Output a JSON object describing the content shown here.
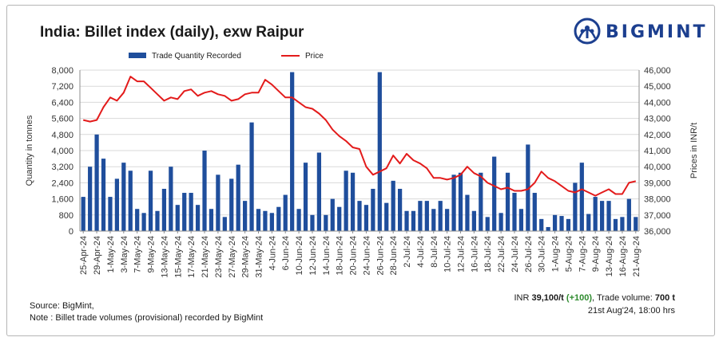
{
  "title": "India: Billet index (daily), exw Raipur",
  "brand": {
    "name": "BIGMINT",
    "color": "#1c3f8f"
  },
  "footer": {
    "source": "Source: BigMint,",
    "note": "Note : Billet trade volumes (provisional) recorded by BigMint"
  },
  "latest": {
    "price_prefix": "INR",
    "price_value": "39,100/t",
    "change": "(+100)",
    "volume_label": ", Trade volume:",
    "volume_value": "700 t",
    "timestamp": "21st Aug'24, 18:00 hrs"
  },
  "colors": {
    "bar": "#1f4e9c",
    "line": "#e31b1b",
    "grid": "#d9d9d9",
    "axis_text": "#333333"
  },
  "chart_data": {
    "type": "bar+line",
    "title": "India: Billet index (daily), exw Raipur",
    "legend": [
      "Trade Quantity Recorded",
      "Price"
    ],
    "legend_position": "top",
    "ylabel_left": "Quantity in tonnes",
    "ylabel_right": "Prices in INR/t",
    "ylim_left": [
      0,
      8000
    ],
    "yticks_left": [
      0,
      800,
      1600,
      2400,
      3200,
      4000,
      4800,
      5600,
      6400,
      7200,
      8000
    ],
    "ytick_labels_left": [
      "0",
      "800",
      "1,600",
      "2,400",
      "3,200",
      "4,000",
      "4,800",
      "5,600",
      "6,400",
      "7,200",
      "8,000"
    ],
    "ylim_right": [
      36000,
      46000
    ],
    "yticks_right": [
      36000,
      37000,
      38000,
      39000,
      40000,
      41000,
      42000,
      43000,
      44000,
      45000,
      46000
    ],
    "ytick_labels_right": [
      "36,000",
      "37,000",
      "38,000",
      "39,000",
      "40,000",
      "41,000",
      "42,000",
      "43,000",
      "44,000",
      "45,000",
      "46,000"
    ],
    "x_tick_labels": [
      "25-Apr-24",
      "29-Apr-24",
      "1-May-24",
      "3-May-24",
      "7-May-24",
      "9-May-24",
      "13-May-24",
      "15-May-24",
      "17-May-24",
      "21-May-24",
      "23-May-24",
      "27-May-24",
      "29-May-24",
      "31-May-24",
      "4-Jun-24",
      "6-Jun-24",
      "10-Jun-24",
      "12-Jun-24",
      "14-Jun-24",
      "18-Jun-24",
      "20-Jun-24",
      "24-Jun-24",
      "26-Jun-24",
      "28-Jun-24",
      "2-Jul-24",
      "4-Jul-24",
      "8-Jul-24",
      "10-Jul-24",
      "12-Jul-24",
      "16-Jul-24",
      "18-Jul-24",
      "22-Jul-24",
      "24-Jul-24",
      "26-Jul-24",
      "30-Jul-24",
      "1-Aug-24",
      "5-Aug-24",
      "7-Aug-24",
      "9-Aug-24",
      "13-Aug-24",
      "16-Aug-24",
      "21-Aug-24"
    ],
    "tick_every": 2,
    "series": [
      {
        "name": "Trade Quantity Recorded",
        "type": "bar",
        "axis": "left",
        "values": [
          1700,
          3200,
          4800,
          3600,
          1700,
          2600,
          3400,
          3000,
          1100,
          900,
          3000,
          1000,
          2100,
          3200,
          1300,
          1900,
          1900,
          1300,
          4000,
          1100,
          2800,
          700,
          2600,
          3300,
          1500,
          5400,
          1100,
          1000,
          900,
          1200,
          1800,
          7900,
          1100,
          3400,
          800,
          3900,
          800,
          1600,
          1200,
          3000,
          2900,
          1500,
          1300,
          2100,
          7900,
          1400,
          2500,
          2100,
          1000,
          1000,
          1500,
          1500,
          1100,
          1500,
          1100,
          2800,
          2900,
          1800,
          1000,
          2900,
          700,
          3700,
          900,
          2900,
          1900,
          1100,
          4300,
          1900,
          600,
          200,
          800,
          750,
          600,
          2400,
          3400,
          850,
          1700,
          1500,
          1500,
          600,
          700,
          1600,
          700
        ]
      },
      {
        "name": "Price",
        "type": "line",
        "axis": "right",
        "values": [
          42900,
          42800,
          42900,
          43700,
          44300,
          44100,
          44600,
          45600,
          45300,
          45300,
          44900,
          44500,
          44100,
          44300,
          44200,
          44700,
          44800,
          44400,
          44600,
          44700,
          44500,
          44400,
          44100,
          44200,
          44500,
          44600,
          44600,
          45400,
          45100,
          44700,
          44300,
          44300,
          44000,
          43700,
          43600,
          43300,
          42900,
          42300,
          41900,
          41600,
          41200,
          41100,
          40000,
          39500,
          39700,
          39900,
          40700,
          40200,
          40800,
          40400,
          40200,
          39900,
          39300,
          39300,
          39200,
          39300,
          39500,
          40000,
          39600,
          39400,
          39000,
          38800,
          38600,
          38700,
          38500,
          38500,
          38600,
          39000,
          39700,
          39300,
          39100,
          38800,
          38500,
          38400,
          38600,
          38400,
          38200,
          38400,
          38600,
          38300,
          38300,
          39000,
          39100
        ]
      }
    ]
  }
}
